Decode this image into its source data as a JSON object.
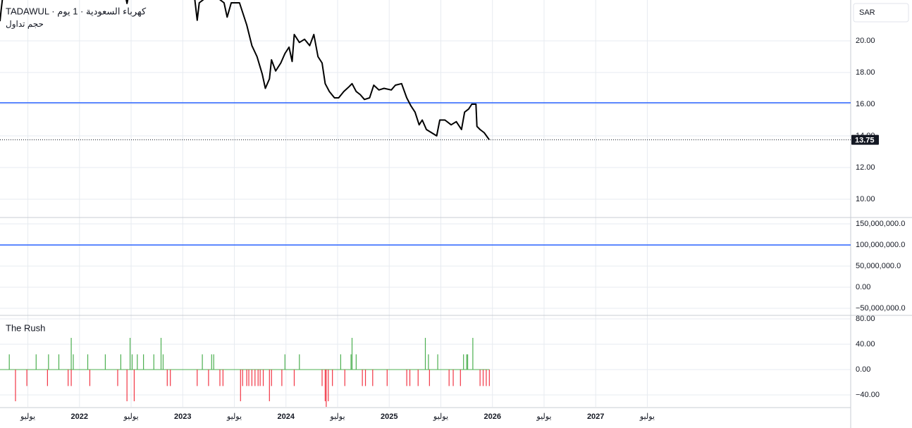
{
  "chart_data": [
    {
      "type": "line",
      "title": "TADAWUL · كهرباء السعودية · 1 يوم",
      "subtitle": "حجم تداول",
      "currency": "SAR",
      "color": "#000000",
      "hline": 16.09,
      "hline_color": "#2962ff",
      "xlim": [
        2021.23,
        2029.47
      ],
      "ylim": [
        8.89,
        22.58
      ],
      "yticks": [
        {
          "value": 10,
          "label": "10.00"
        },
        {
          "value": 12,
          "label": "12.00"
        },
        {
          "value": 14,
          "label": "14.00"
        },
        {
          "value": 16,
          "label": "16.00"
        },
        {
          "value": 18,
          "label": "18.00"
        },
        {
          "value": 20,
          "label": "20.00"
        }
      ],
      "x": [
        2021.23,
        2021.24,
        2021.26,
        2022.44,
        2022.46,
        2022.48,
        2023.11,
        2023.14,
        2023.16,
        2023.28,
        2023.4,
        2023.43,
        2023.47,
        2023.55,
        2023.62,
        2023.67,
        2023.72,
        2023.77,
        2023.8,
        2023.84,
        2023.86,
        2023.9,
        2023.95,
        2023.99,
        2024.03,
        2024.06,
        2024.08,
        2024.13,
        2024.18,
        2024.23,
        2024.27,
        2024.31,
        2024.35,
        2024.38,
        2024.42,
        2024.47,
        2024.51,
        2024.56,
        2024.61,
        2024.64,
        2024.68,
        2024.72,
        2024.76,
        2024.81,
        2024.85,
        2024.9,
        2024.95,
        2025.02,
        2025.06,
        2025.12,
        2025.17,
        2025.21,
        2025.25,
        2025.29,
        2025.32,
        2025.36,
        2025.41,
        2025.46,
        2025.49,
        2025.54,
        2025.6,
        2025.65,
        2025.7,
        2025.73,
        2025.77,
        2025.8,
        2025.84,
        2025.85,
        2025.88,
        2025.92,
        2025.97
      ],
      "values": [
        21.24,
        21.9,
        23.0,
        23.0,
        22.36,
        23.0,
        23.0,
        21.3,
        22.4,
        23.0,
        22.4,
        21.5,
        22.4,
        22.4,
        21.0,
        19.7,
        19.0,
        17.9,
        17.0,
        17.6,
        18.8,
        18.1,
        18.6,
        19.2,
        19.6,
        18.7,
        20.4,
        19.9,
        20.1,
        19.7,
        20.4,
        19.0,
        18.6,
        17.3,
        16.8,
        16.4,
        16.4,
        16.8,
        17.1,
        17.3,
        16.8,
        16.6,
        16.3,
        16.4,
        17.2,
        16.9,
        17.0,
        16.9,
        17.2,
        17.3,
        16.4,
        15.9,
        15.5,
        14.7,
        15.0,
        14.4,
        14.2,
        14.0,
        15.0,
        15.0,
        14.7,
        14.9,
        14.4,
        15.5,
        15.7,
        16.0,
        16.0,
        14.6,
        14.4,
        14.2,
        13.75
      ]
    },
    {
      "type": "hline",
      "hline": 100000000,
      "hline_color": "#2962ff",
      "ylim": [
        -65000000,
        163300000
      ],
      "yticks": [
        {
          "value": -50000000,
          "label": "−50,000,000.0"
        },
        {
          "value": 0,
          "label": "0.00"
        },
        {
          "value": 50000000,
          "label": "50,000,000.0"
        },
        {
          "value": 100000000,
          "label": "100,000,000.0"
        },
        {
          "value": 150000000,
          "label": "150,000,000.0"
        }
      ]
    },
    {
      "type": "bar",
      "title": "The Rush",
      "xlim": [
        2021.23,
        2029.47
      ],
      "ylim": [
        -58.9,
        84.4
      ],
      "yticks": [
        {
          "value": -40,
          "label": "−40.00"
        },
        {
          "value": 0,
          "label": "0.00"
        },
        {
          "value": 40,
          "label": "40.00"
        },
        {
          "value": 80,
          "label": "80.00"
        }
      ],
      "xticks": [
        {
          "value": 2021.5,
          "label": "يوليو"
        },
        {
          "value": 2022,
          "label": "2022"
        },
        {
          "value": 2022.5,
          "label": "يوليو"
        },
        {
          "value": 2023,
          "label": "2023"
        },
        {
          "value": 2023.5,
          "label": "يوليو"
        },
        {
          "value": 2024,
          "label": "2024"
        },
        {
          "value": 2024.5,
          "label": "يوليو"
        },
        {
          "value": 2025,
          "label": "2025"
        },
        {
          "value": 2025.5,
          "label": "يوليو"
        },
        {
          "value": 2026,
          "label": "2026"
        },
        {
          "value": 2026.5,
          "label": "يوليو"
        },
        {
          "value": 2027,
          "label": "2027"
        },
        {
          "value": 2027.5,
          "label": "يوليو"
        }
      ],
      "series": [
        {
          "color": "#4caf50",
          "x": [
            2021.32,
            2021.58,
            2021.7,
            2021.8,
            2021.92,
            2021.94,
            2022.08,
            2022.25,
            2022.4,
            2022.49,
            2022.51,
            2022.56,
            2022.62,
            2022.72,
            2022.79,
            2022.81,
            2023.19,
            2023.28,
            2023.3,
            2023.99,
            2024.13,
            2024.53,
            2024.63,
            2024.64,
            2024.68,
            2025.35,
            2025.38,
            2025.47,
            2025.72,
            2025.75,
            2025.76,
            2025.81
          ],
          "values": [
            24,
            24,
            24,
            24,
            50,
            24,
            24,
            24,
            24,
            50,
            24,
            24,
            24,
            24,
            50,
            24,
            24,
            24,
            24,
            24,
            24,
            24,
            24,
            50,
            24,
            50,
            24,
            24,
            24,
            24,
            24,
            50
          ]
        },
        {
          "color": "#f23645",
          "x": [
            2021.38,
            2021.49,
            2021.69,
            2021.89,
            2021.92,
            2022.1,
            2022.37,
            2022.46,
            2022.53,
            2022.85,
            2022.88,
            2023.14,
            2023.25,
            2023.36,
            2023.39,
            2023.56,
            2023.58,
            2023.62,
            2023.64,
            2023.67,
            2023.7,
            2023.73,
            2023.75,
            2023.78,
            2023.84,
            2023.86,
            2023.96,
            2024.08,
            2024.35,
            2024.38,
            2024.39,
            2024.41,
            2024.45,
            2024.57,
            2024.74,
            2024.77,
            2024.84,
            2024.98,
            2025.17,
            2025.2,
            2025.28,
            2025.39,
            2025.58,
            2025.62,
            2025.69,
            2025.88,
            2025.91,
            2025.94,
            2025.97
          ],
          "values": [
            -50,
            -26,
            -26,
            -26,
            -26,
            -26,
            -26,
            -50,
            -50,
            -26,
            -26,
            -26,
            -26,
            -26,
            -26,
            -50,
            -26,
            -26,
            -26,
            -26,
            -26,
            -26,
            -26,
            -26,
            -50,
            -26,
            -26,
            -26,
            -26,
            -50,
            -59,
            -50,
            -26,
            -26,
            -26,
            -26,
            -26,
            -26,
            -26,
            -26,
            -26,
            -26,
            -26,
            -26,
            -26,
            -26,
            -26,
            -26,
            -26
          ]
        }
      ]
    }
  ]
}
